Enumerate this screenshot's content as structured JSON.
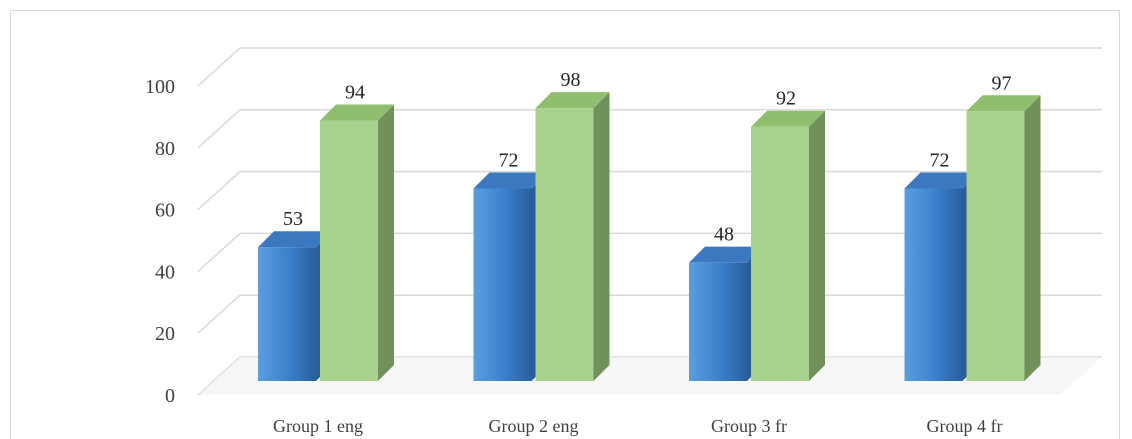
{
  "chart_data": {
    "type": "bar",
    "categories": [
      "Group 1 eng",
      "Group 2 eng",
      "Group 3 fr",
      "Group 4 fr"
    ],
    "series": [
      {
        "values": [
          53,
          72,
          48,
          72
        ],
        "color": "#3c7fcb"
      },
      {
        "values": [
          94,
          98,
          92,
          97
        ],
        "color": "#a9d18e"
      }
    ],
    "ylim": [
      0,
      100
    ],
    "yticks": [
      0,
      20,
      40,
      60,
      80,
      100
    ],
    "title": "",
    "xlabel": "",
    "ylabel": "",
    "grid": true,
    "legend": "none",
    "style": "3d-clustered-column"
  }
}
